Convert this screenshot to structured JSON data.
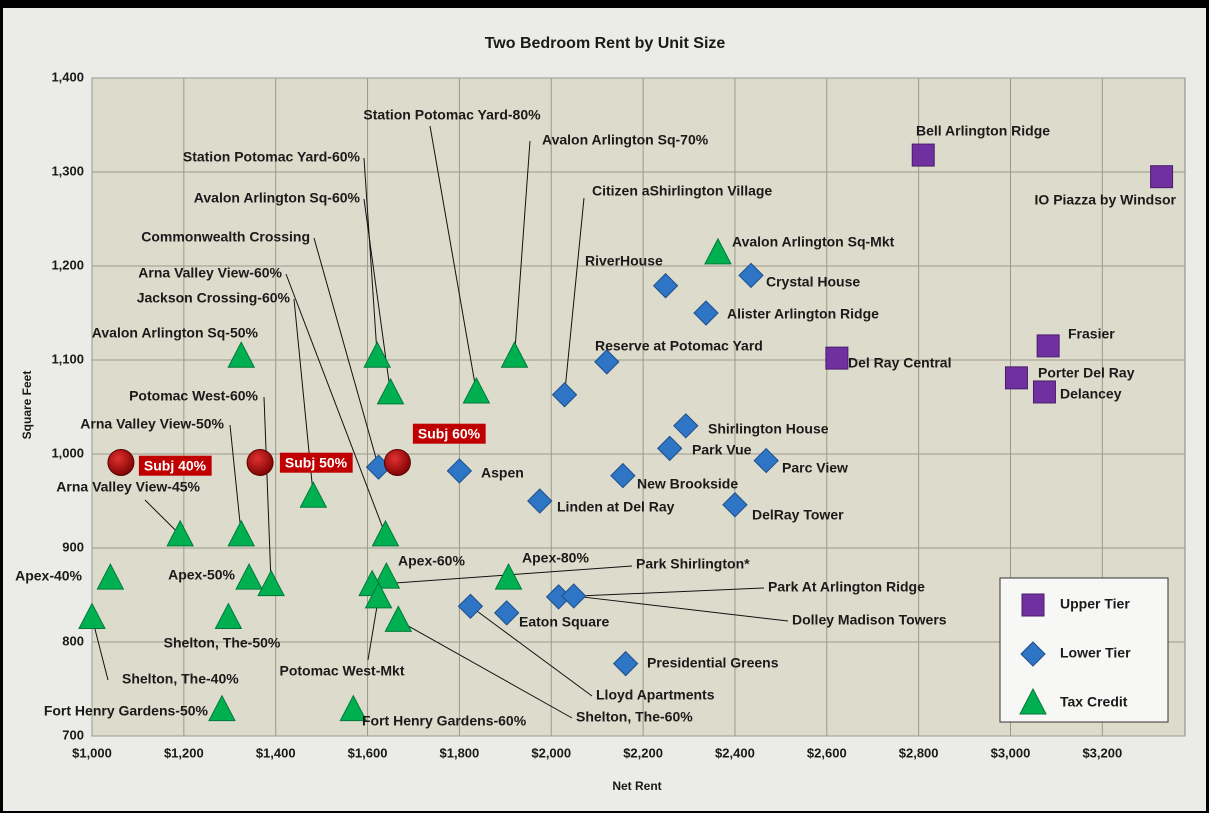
{
  "chart_data": {
    "type": "scatter",
    "title": "Two Bedroom Rent by Unit Size",
    "x_label": "Net Rent",
    "y_label": "Square Feet",
    "xlim": [
      1000,
      3380
    ],
    "ylim": [
      700,
      1400
    ],
    "xticks": [
      {
        "value": 1000,
        "label": "$1,000"
      },
      {
        "value": 1200,
        "label": "$1,200"
      },
      {
        "value": 1400,
        "label": "$1,400"
      },
      {
        "value": 1600,
        "label": "$1,600"
      },
      {
        "value": 1800,
        "label": "$1,800"
      },
      {
        "value": 2000,
        "label": "$2,000"
      },
      {
        "value": 2200,
        "label": "$2,200"
      },
      {
        "value": 2400,
        "label": "$2,400"
      },
      {
        "value": 2600,
        "label": "$2,600"
      },
      {
        "value": 2800,
        "label": "$2,800"
      },
      {
        "value": 3000,
        "label": "$3,000"
      },
      {
        "value": 3200,
        "label": "$3,200"
      }
    ],
    "yticks": [
      700,
      800,
      900,
      {
        "value": 1000,
        "label": "1,000"
      },
      {
        "value": 1100,
        "label": "1,100"
      },
      {
        "value": 1200,
        "label": "1,200"
      },
      {
        "value": 1300,
        "label": "1,300"
      },
      {
        "value": 1400,
        "label": "1,400"
      }
    ],
    "grid": true,
    "legend": "lower right",
    "series": [
      {
        "name": "Upper Tier",
        "color": "#7030a0",
        "marker": "square",
        "labels": [
          "Bell Arlington Ridge",
          "IO Piazza by Windsor",
          "Del Ray Central",
          "Frasier",
          "Porter Del Ray",
          "Delancey"
        ],
        "x": [
          2810,
          3329,
          2622,
          3082,
          3013,
          3074
        ],
        "y": [
          1318,
          1295,
          1102,
          1115,
          1081,
          1066
        ]
      },
      {
        "name": "Lower Tier",
        "color": "#2e75c6",
        "marker": "diamond",
        "labels": [
          "RiverHouse",
          "Crystal House",
          "Alister Arlington Ridge",
          "Reserve at Potomac Yard",
          "Citizen aShirlington Village",
          "Shirlington House",
          "Park Vue",
          "Parc View",
          "New Brookside",
          "Aspen",
          "Linden at Del Ray",
          "DelRay Tower",
          "Commonwealth Crossing",
          "Lloyd Apartments",
          "Eaton Square",
          "Park At Arlington Ridge",
          "Dolley Madison Towers",
          "Presidential Greens"
        ],
        "x": [
          2249,
          2435,
          2337,
          2121,
          2029,
          2293,
          2258,
          2468,
          2156,
          1800,
          1975,
          2400,
          1624,
          1824,
          1903,
          2016,
          2049,
          2162
        ],
        "y": [
          1179,
          1190,
          1150,
          1098,
          1063,
          1030,
          1006,
          993,
          977,
          982,
          950,
          946,
          986,
          838,
          831,
          848,
          849,
          777
        ]
      },
      {
        "name": "Tax Credit",
        "color": "#00b050",
        "marker": "triangle",
        "labels": [
          "Avalon Arlington Sq-Mkt",
          "Avalon Arlington Sq-50%",
          "Station Potomac Yard-60%",
          "Avalon Arlington Sq-60%",
          "Station Potomac Yard-80%",
          "Avalon Arlington Sq-70%",
          "Jackson Crossing-60%",
          "Arna Valley View-60%",
          "Arna Valley View-50%",
          "Arna Valley View-45%",
          "Potomac West-60%",
          "Apex-50%",
          "Apex-40%",
          "Apex-60%",
          "Apex-80%",
          "Park Shirlington*",
          "Potomac West-Mkt",
          "Shelton, The-50%",
          "Shelton, The-60%",
          "Shelton, The-40%",
          "Fort Henry Gardens-50%",
          "Fort Henry Gardens-60%"
        ],
        "x": [
          2363,
          1325,
          1621,
          1650,
          1837,
          1920,
          1482,
          1639,
          1325,
          1192,
          1390,
          1342,
          1040,
          1641,
          1907,
          1610,
          1624,
          1297,
          1667,
          1000,
          1283,
          1569
        ],
        "y": [
          1214,
          1104,
          1104,
          1065,
          1066,
          1104,
          955,
          914,
          914,
          914,
          861,
          868,
          868,
          869,
          868,
          861,
          848,
          826,
          823,
          826,
          728,
          728
        ]
      },
      {
        "color": "#c00000",
        "marker": "circle",
        "labels": [
          "Subj 40%",
          "Subj 50%",
          "Subj 60%"
        ],
        "x": [
          1063,
          1366,
          1665
        ],
        "y": [
          991,
          991,
          991
        ]
      }
    ]
  }
}
